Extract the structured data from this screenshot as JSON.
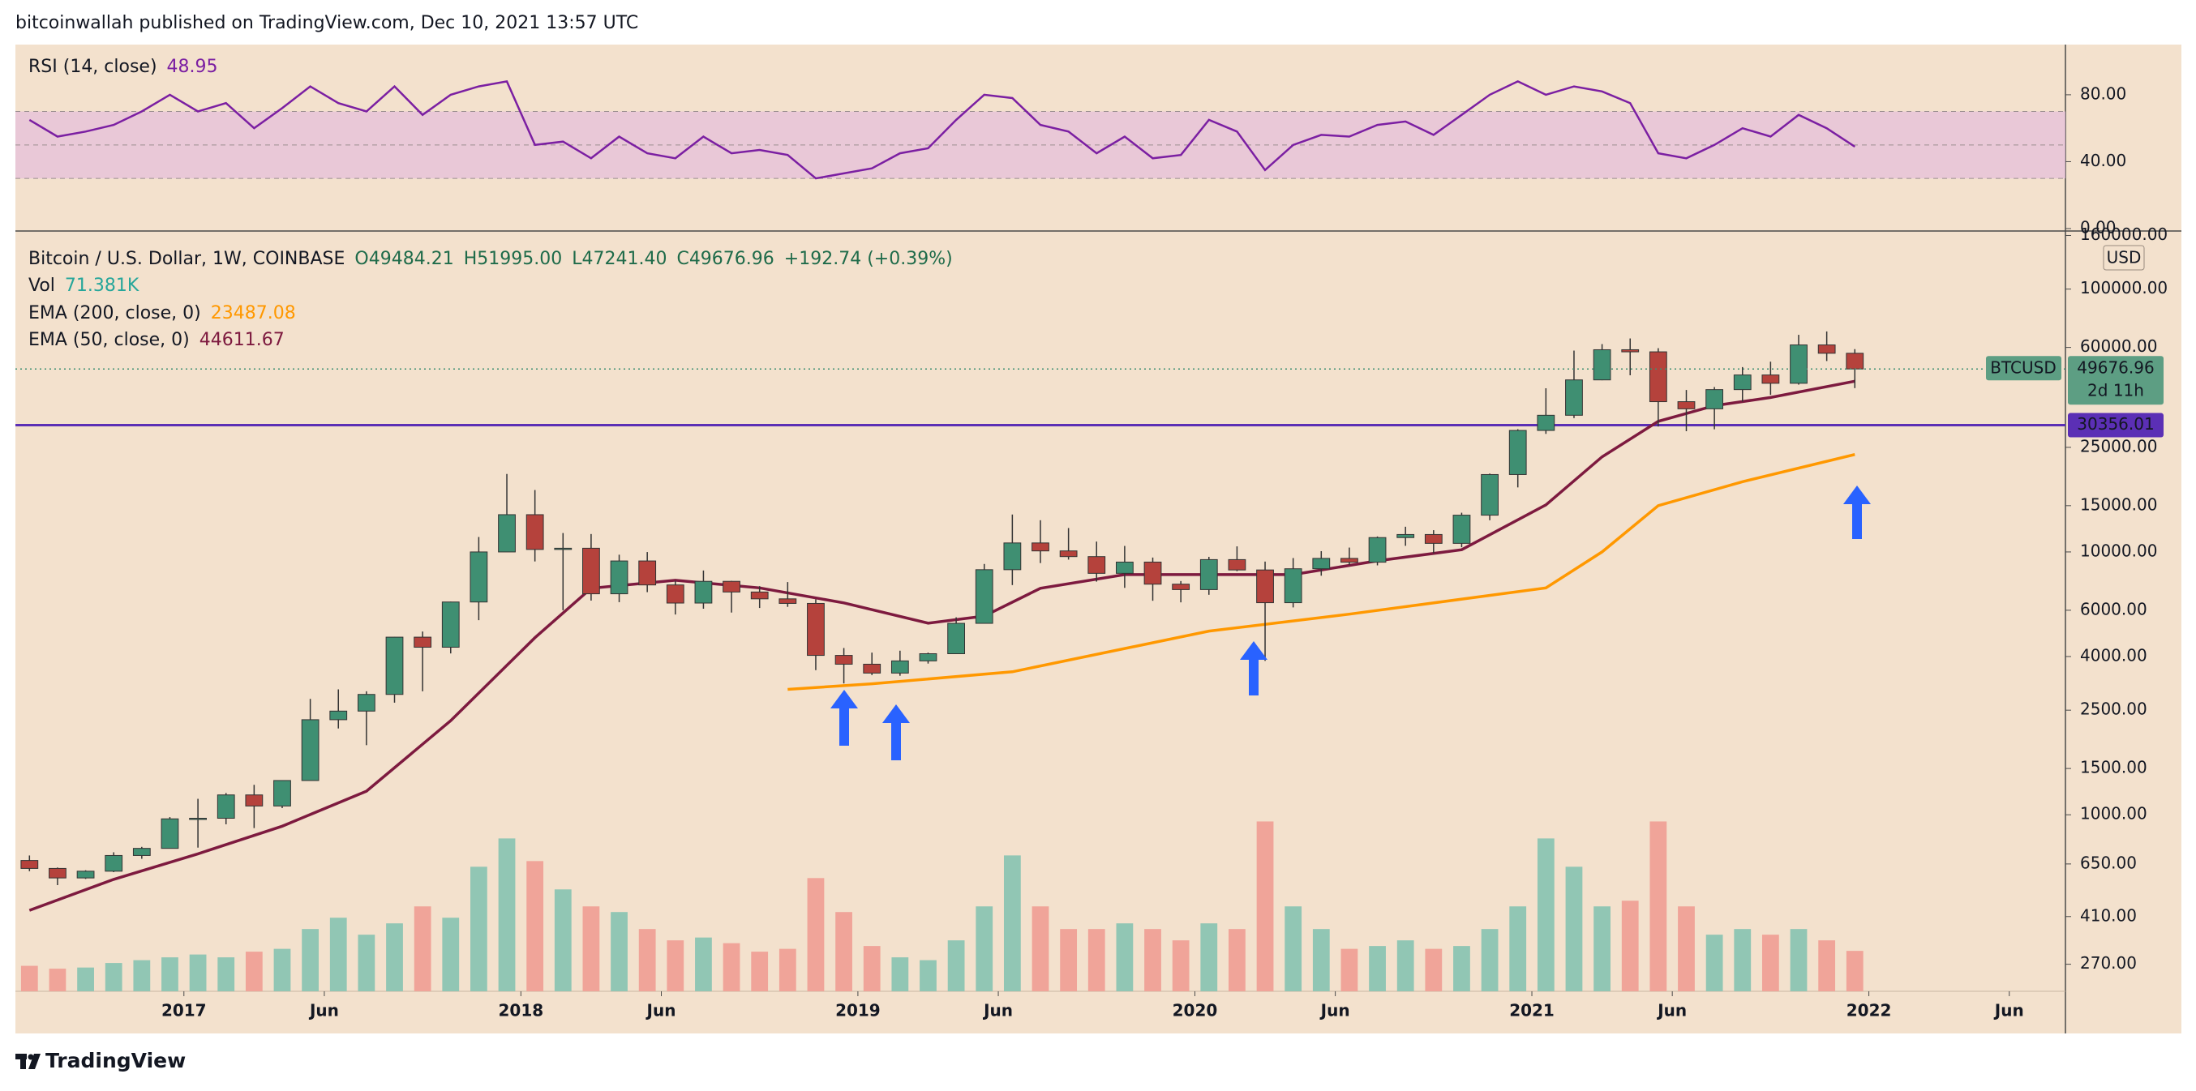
{
  "chart_data": {
    "type": "candlestick",
    "title": "bitcoinwallah published on TradingView.com, Dec 10, 2021 13:57 UTC",
    "symbol": "Bitcoin / U.S. Dollar, 1W, COINBASE",
    "ohlc_legend": [
      "O49484.21",
      "H51995.00",
      "L47241.40",
      "C49676.96",
      "+192.74 (+0.39%)"
    ],
    "x": [
      "2016-07",
      "2016-08",
      "2016-09",
      "2016-10",
      "2016-11",
      "2016-12",
      "2017-01",
      "2017-02",
      "2017-03",
      "2017-04",
      "2017-05",
      "2017-06",
      "2017-07",
      "2017-08",
      "2017-09",
      "2017-10",
      "2017-11",
      "2017-12",
      "2018-01",
      "2018-02",
      "2018-03",
      "2018-04",
      "2018-05",
      "2018-06",
      "2018-07",
      "2018-08",
      "2018-09",
      "2018-10",
      "2018-11",
      "2018-12",
      "2019-01",
      "2019-02",
      "2019-03",
      "2019-04",
      "2019-05",
      "2019-06",
      "2019-07",
      "2019-08",
      "2019-09",
      "2019-10",
      "2019-11",
      "2019-12",
      "2020-01",
      "2020-02",
      "2020-03",
      "2020-04",
      "2020-05",
      "2020-06",
      "2020-07",
      "2020-08",
      "2020-09",
      "2020-10",
      "2020-11",
      "2020-12",
      "2021-01",
      "2021-02",
      "2021-03",
      "2021-04",
      "2021-05",
      "2021-06",
      "2021-07",
      "2021-08",
      "2021-09",
      "2021-10",
      "2021-11",
      "2021-12"
    ],
    "open": [
      670,
      625,
      575,
      610,
      700,
      745,
      965,
      970,
      1190,
      1080,
      1350,
      2300,
      2480,
      2870,
      4740,
      4340,
      6450,
      10000,
      13860,
      10220,
      10330,
      6930,
      9240,
      7490,
      6390,
      7730,
      7040,
      6630,
      6370,
      4040,
      3740,
      3460,
      3850,
      4100,
      5350,
      8560,
      10820,
      10090,
      9600,
      8290,
      9150,
      7540,
      7190,
      9350,
      8540,
      6410,
      8630,
      9450,
      9140,
      11340,
      11650,
      10780,
      13800,
      19700,
      28990,
      33110,
      45140,
      58790,
      57720,
      37300,
      35040,
      41460,
      47130,
      43820,
      61320,
      57000
    ],
    "high": [
      700,
      630,
      615,
      720,
      755,
      980,
      1150,
      1210,
      1300,
      1350,
      2760,
      3000,
      2950,
      4750,
      4980,
      6470,
      11400,
      19800,
      17200,
      11800,
      11700,
      9760,
      9990,
      7760,
      8500,
      7760,
      7410,
      7680,
      6600,
      4310,
      4140,
      4210,
      4140,
      5640,
      9000,
      13880,
      13200,
      12330,
      10950,
      10540,
      9520,
      7750,
      9580,
      10500,
      9190,
      9480,
      10070,
      10390,
      11450,
      12470,
      12100,
      14100,
      19870,
      29300,
      41950,
      58350,
      61780,
      64900,
      59600,
      41330,
      42400,
      50500,
      52950,
      66999,
      69000,
      59100
    ],
    "low": [
      610,
      540,
      570,
      605,
      680,
      745,
      750,
      920,
      890,
      1060,
      1350,
      2130,
      1840,
      2670,
      2950,
      4110,
      5500,
      10000,
      9200,
      6000,
      6530,
      6440,
      7030,
      5780,
      6080,
      5880,
      6120,
      6180,
      3550,
      3160,
      3400,
      3380,
      3760,
      4090,
      5340,
      7480,
      9070,
      9350,
      7710,
      7300,
      6520,
      6430,
      6870,
      8450,
      3850,
      6150,
      8120,
      8920,
      8890,
      10550,
      9880,
      10420,
      13200,
      17600,
      28130,
      32300,
      45000,
      47000,
      30000,
      28800,
      29280,
      37330,
      39600,
      43300,
      53250,
      42000
    ],
    "close": [
      625,
      575,
      610,
      700,
      745,
      965,
      970,
      1190,
      1080,
      1350,
      2300,
      2480,
      2870,
      4740,
      4340,
      6450,
      10000,
      13860,
      10220,
      10330,
      6930,
      9240,
      7490,
      6390,
      7730,
      7040,
      6630,
      6370,
      4040,
      3740,
      3460,
      3850,
      4100,
      5350,
      8560,
      10820,
      10090,
      9600,
      8290,
      9150,
      7540,
      7190,
      9350,
      8540,
      6410,
      8630,
      9450,
      9140,
      11340,
      11650,
      10780,
      13800,
      19700,
      28990,
      33110,
      45140,
      58790,
      57720,
      37300,
      35040,
      41460,
      47130,
      43820,
      61320,
      57000,
      49676.96
    ],
    "up_color": "#3f8f72",
    "down_color": "#b5423c",
    "log_scale": true,
    "ylim": [
      213,
      164000
    ],
    "yticks": [
      {
        "value": 160000,
        "label": "160000.00"
      },
      {
        "value": 100000,
        "label": "100000.00"
      },
      {
        "value": 60000,
        "label": "60000.00"
      },
      {
        "value": 25000,
        "label": "25000.00"
      },
      {
        "value": 15000,
        "label": "15000.00"
      },
      {
        "value": 10000,
        "label": "10000.00"
      },
      {
        "value": 6000,
        "label": "6000.00"
      },
      {
        "value": 4000,
        "label": "4000.00"
      },
      {
        "value": 2500,
        "label": "2500.00"
      },
      {
        "value": 1500,
        "label": "1500.00"
      },
      {
        "value": 1000,
        "label": "1000.00"
      },
      {
        "value": 650,
        "label": "650.00"
      },
      {
        "value": 410,
        "label": "410.00"
      },
      {
        "value": 270,
        "label": "270.00"
      }
    ],
    "xlim": [
      "2016-07",
      "2022-08"
    ],
    "xticks": [
      {
        "value": "2017-01",
        "label": "2017"
      },
      {
        "value": "2017-06",
        "label": "Jun"
      },
      {
        "value": "2018-01",
        "label": "2018"
      },
      {
        "value": "2018-06",
        "label": "Jun"
      },
      {
        "value": "2019-01",
        "label": "2019"
      },
      {
        "value": "2019-06",
        "label": "Jun"
      },
      {
        "value": "2020-01",
        "label": "2020"
      },
      {
        "value": "2020-06",
        "label": "Jun"
      },
      {
        "value": "2021-01",
        "label": "2021"
      },
      {
        "value": "2021-06",
        "label": "Jun"
      },
      {
        "value": "2022-01",
        "label": "2022"
      },
      {
        "value": "2022-06",
        "label": "Jun"
      }
    ],
    "currency": "USD",
    "symbol_tag": "BTCUSD",
    "countdown": "2d 11h",
    "hline": {
      "value": 30356.01,
      "color": "#5b2fb5"
    },
    "volume": {
      "label": "Vol",
      "value_text": "71.381K",
      "up_color": "#91c6b4",
      "down_color": "#f0a499",
      "ylim": [
        0,
        1340
      ],
      "values": [
        45,
        40,
        42,
        50,
        55,
        60,
        65,
        60,
        70,
        75,
        110,
        130,
        100,
        120,
        150,
        130,
        220,
        270,
        230,
        180,
        150,
        140,
        110,
        90,
        95,
        85,
        70,
        75,
        200,
        140,
        80,
        60,
        55,
        90,
        150,
        240,
        150,
        110,
        110,
        120,
        110,
        90,
        120,
        110,
        300,
        150,
        110,
        75,
        80,
        90,
        75,
        80,
        110,
        150,
        270,
        220,
        150,
        160,
        300,
        150,
        100,
        110,
        100,
        110,
        90,
        71.381
      ]
    },
    "ema200": {
      "name": "EMA (200, close, 0)",
      "color": "#ff9800",
      "x": [
        "2018-10",
        "2019-01",
        "2019-06",
        "2020-01",
        "2020-06",
        "2021-01",
        "2021-03",
        "2021-05",
        "2021-08",
        "2021-12"
      ],
      "values": [
        3000,
        3150,
        3500,
        5000,
        5800,
        7300,
        10000,
        15000,
        18500,
        23487.08
      ]
    },
    "ema50": {
      "name": "EMA (50, close, 0)",
      "color": "#7d1a3f",
      "x": [
        "2016-07",
        "2016-10",
        "2017-01",
        "2017-04",
        "2017-07",
        "2017-10",
        "2018-01",
        "2018-03",
        "2018-06",
        "2018-09",
        "2018-12",
        "2019-03",
        "2019-05",
        "2019-07",
        "2019-10",
        "2020-01",
        "2020-04",
        "2020-07",
        "2020-10",
        "2021-01",
        "2021-03",
        "2021-05",
        "2021-07",
        "2021-09",
        "2021-12"
      ],
      "values": [
        433,
        568,
        710,
        905,
        1230,
        2280,
        4720,
        7270,
        7800,
        7300,
        6400,
        5360,
        5700,
        7270,
        8200,
        8200,
        8200,
        9250,
        10200,
        15100,
        23000,
        31400,
        36000,
        38700,
        44611.67
      ]
    },
    "rsi": {
      "name": "RSI (14, close)",
      "color": "#7b1fa2",
      "band": [
        30,
        70
      ],
      "band_color": "#e6bfd9",
      "levels": [
        70,
        50,
        30
      ],
      "ylim": [
        0,
        110
      ],
      "yticks": [
        {
          "value": 80,
          "label": "80.00"
        },
        {
          "value": 40,
          "label": "40.00"
        },
        {
          "value": 0,
          "label": "0.00"
        }
      ],
      "values": [
        65,
        55,
        58,
        62,
        70,
        80,
        70,
        75,
        60,
        72,
        85,
        75,
        70,
        85,
        68,
        80,
        85,
        88,
        50,
        52,
        42,
        55,
        45,
        42,
        55,
        45,
        47,
        44,
        30,
        33,
        36,
        45,
        48,
        65,
        80,
        78,
        62,
        58,
        45,
        55,
        42,
        44,
        65,
        58,
        35,
        50,
        56,
        55,
        62,
        64,
        56,
        68,
        80,
        88,
        80,
        85,
        82,
        75,
        45,
        42,
        50,
        60,
        55,
        68,
        60,
        48.95
      ]
    },
    "logo": "TradingView"
  }
}
